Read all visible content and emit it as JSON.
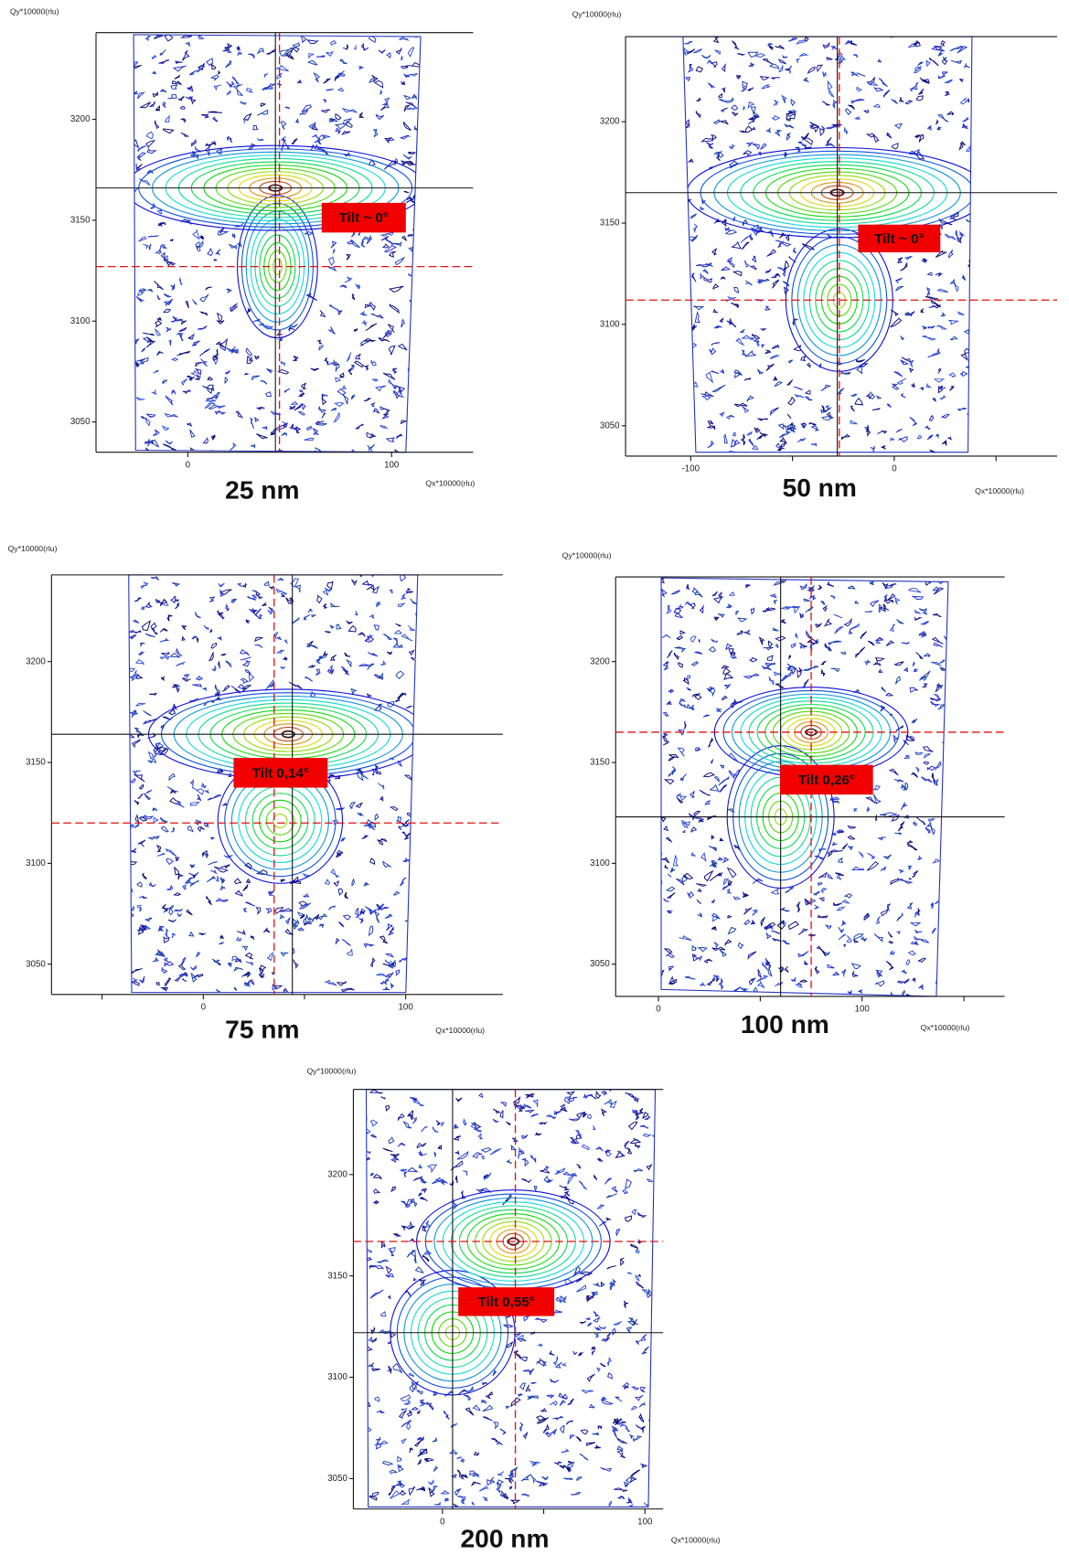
{
  "chart_data": [
    {
      "type": "contour",
      "title": "25 nm",
      "xlabel": "Qx*10000(rlu)",
      "ylabel": "Qy*10000(rlu)",
      "annotation": "Tilt ~ 0°",
      "xlim": [
        -45,
        140
      ],
      "ylim": [
        3035,
        3243
      ],
      "xticks": [
        0,
        100
      ],
      "xminorticks": [],
      "yticks": [
        3050,
        3100,
        3150,
        3200
      ],
      "peaks": [
        {
          "x": 43,
          "y": 3166
        },
        {
          "x": 44,
          "y": 3127
        }
      ],
      "reference_lines": {
        "solid": {
          "x": 43,
          "y": 3166
        },
        "dashed": {
          "x": 45,
          "y": 3127
        }
      }
    },
    {
      "type": "contour",
      "title": "50 nm",
      "xlabel": "Qx*10000(rlu)",
      "ylabel": "Qy*10000(rlu)",
      "annotation": "Tilt ~ 0°",
      "xlim": [
        -132,
        80
      ],
      "ylim": [
        3035,
        3242
      ],
      "xticks": [
        -100,
        0
      ],
      "xminorticks": [
        -50,
        50
      ],
      "yticks": [
        3050,
        3100,
        3150,
        3200
      ],
      "peaks": [
        {
          "x": -28,
          "y": 3165
        },
        {
          "x": -27,
          "y": 3112
        }
      ],
      "reference_lines": {
        "solid": {
          "x": -28,
          "y": 3165
        },
        "dashed": {
          "x": -27,
          "y": 3112
        }
      }
    },
    {
      "type": "contour",
      "title": "75 nm",
      "xlabel": "Qx*10000(rlu)",
      "ylabel": "Qy*10000(rlu)",
      "annotation": "Tilt 0,14°",
      "xlim": [
        -75,
        148
      ],
      "ylim": [
        3035,
        3243
      ],
      "xticks": [
        0,
        100
      ],
      "xminorticks": [
        -50,
        50
      ],
      "yticks": [
        3050,
        3100,
        3150,
        3200
      ],
      "peaks": [
        {
          "x": 42,
          "y": 3164
        },
        {
          "x": 38,
          "y": 3121
        }
      ],
      "reference_lines": {
        "solid": {
          "x": 44,
          "y": 3164
        },
        "dashed": {
          "x": 35,
          "y": 3120
        }
      }
    },
    {
      "type": "contour",
      "title": "100 nm",
      "xlabel": "Qx*10000(rlu)",
      "ylabel": "Qy*10000(rlu)",
      "annotation": "Tilt 0,26°",
      "xlim": [
        -21,
        170
      ],
      "ylim": [
        3034,
        3242
      ],
      "xticks": [
        0,
        100
      ],
      "xminorticks": [
        50,
        150
      ],
      "yticks": [
        3050,
        3100,
        3150,
        3200
      ],
      "peaks": [
        {
          "x": 75,
          "y": 3165
        },
        {
          "x": 60,
          "y": 3123
        }
      ],
      "reference_lines": {
        "solid": {
          "x": 60,
          "y": 3123
        },
        "dashed": {
          "x": 75,
          "y": 3165
        }
      }
    },
    {
      "type": "contour",
      "title": "200 nm",
      "xlabel": "Qx*10000(rlu)",
      "ylabel": "Qy*10000(rlu)",
      "annotation": "Tilt 0,55°",
      "xlim": [
        -44,
        109
      ],
      "ylim": [
        3035,
        3242
      ],
      "xticks": [
        0,
        100
      ],
      "xminorticks": [
        50
      ],
      "yticks": [
        3050,
        3100,
        3150,
        3200
      ],
      "peaks": [
        {
          "x": 35,
          "y": 3167
        },
        {
          "x": 5,
          "y": 3122
        }
      ],
      "reference_lines": {
        "solid": {
          "x": 5,
          "y": 3122
        },
        "dashed": {
          "x": 36,
          "y": 3167
        }
      }
    }
  ]
}
